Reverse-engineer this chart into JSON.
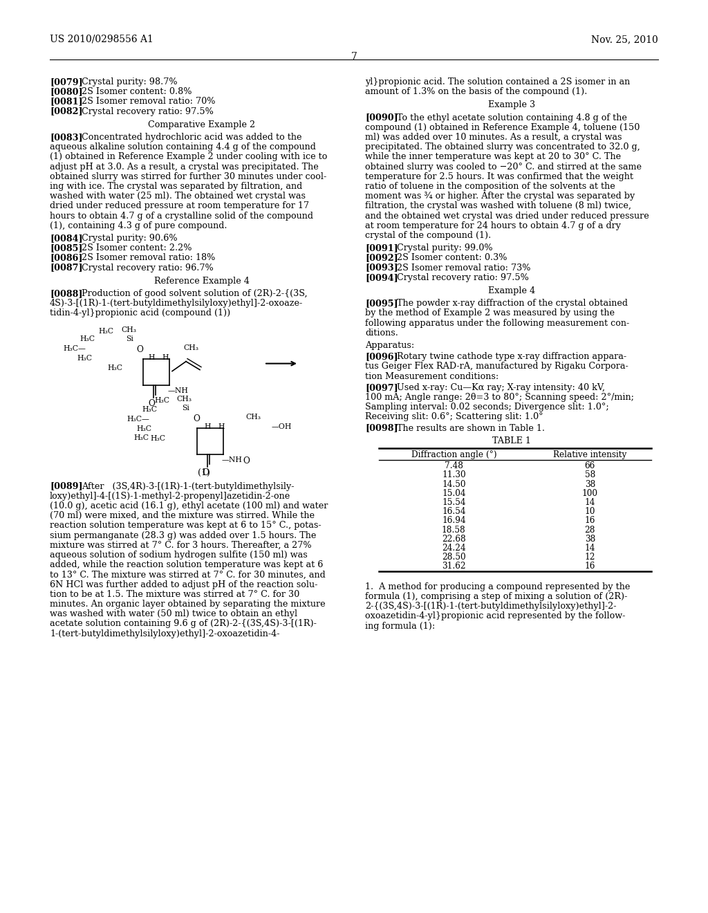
{
  "background_color": "#ffffff",
  "page_number": "7",
  "header_left": "US 2010/0298556 A1",
  "header_right": "Nov. 25, 2010",
  "table1": {
    "header": [
      "Diffraction angle (°)",
      "Relative intensity"
    ],
    "rows": [
      [
        "7.48",
        "66"
      ],
      [
        "11.30",
        "58"
      ],
      [
        "14.50",
        "38"
      ],
      [
        "15.04",
        "100"
      ],
      [
        "15.54",
        "14"
      ],
      [
        "16.54",
        "10"
      ],
      [
        "16.94",
        "16"
      ],
      [
        "18.58",
        "28"
      ],
      [
        "22.68",
        "38"
      ],
      [
        "24.24",
        "14"
      ],
      [
        "28.50",
        "12"
      ],
      [
        "31.62",
        "16"
      ]
    ]
  },
  "left_lines_0079_0082": [
    [
      "[0079]",
      "Crystal purity: 98.7%"
    ],
    [
      "[0080]",
      "2S Isomer content: 0.8%"
    ],
    [
      "[0081]",
      "2S Isomer removal ratio: 70%"
    ],
    [
      "[0082]",
      "Crystal recovery ratio: 97.5%"
    ]
  ],
  "left_lines_0084_0087": [
    [
      "[0084]",
      "Crystal purity: 90.6%"
    ],
    [
      "[0085]",
      "2S Isomer content: 2.2%"
    ],
    [
      "[0086]",
      "2S Isomer removal ratio: 18%"
    ],
    [
      "[0087]",
      "Crystal recovery ratio: 96.7%"
    ]
  ],
  "right_lines_0091_0094": [
    [
      "[0091]",
      "Crystal purity: 99.0%"
    ],
    [
      "[0092]",
      "2S Isomer content: 0.3%"
    ],
    [
      "[0093]",
      "2S Isomer removal ratio: 73%"
    ],
    [
      "[0094]",
      "Crystal recovery ratio: 97.5%"
    ]
  ],
  "lines_0083": [
    "Concentrated hydrochloric acid was added to the",
    "aqueous alkaline solution containing 4.4 g of the compound",
    "(1) obtained in Reference Example 2 under cooling with ice to",
    "adjust pH at 3.0. As a result, a crystal was precipitated. The",
    "obtained slurry was stirred for further 30 minutes under cool-",
    "ing with ice. The crystal was separated by filtration, and",
    "washed with water (25 ml). The obtained wet crystal was",
    "dried under reduced pressure at room temperature for 17",
    "hours to obtain 4.7 g of a crystalline solid of the compound",
    "(1), containing 4.3 g of pure compound."
  ],
  "lines_0088": [
    "Production of good solvent solution of (2R)-2-{(3S,",
    "4S)-3-[(1R)-1-(tert-butyldimethylsilyloxy)ethyl]-2-oxoaze-",
    "tidin-4-yl}propionic acid (compound (1))"
  ],
  "lines_0089": [
    "After   (3S,4R)-3-[(1R)-1-(tert-butyldimethylsily-",
    "loxy)ethyl]-4-[(1S)-1-methyl-2-propenyl]azetidin-2-one",
    "(10.0 g), acetic acid (16.1 g), ethyl acetate (100 ml) and water",
    "(70 ml) were mixed, and the mixture was stirred. While the",
    "reaction solution temperature was kept at 6 to 15° C., potas-",
    "sium permanganate (28.3 g) was added over 1.5 hours. The",
    "mixture was stirred at 7° C. for 3 hours. Thereafter, a 27%",
    "aqueous solution of sodium hydrogen sulfite (150 ml) was",
    "added, while the reaction solution temperature was kept at 6",
    "to 13° C. The mixture was stirred at 7° C. for 30 minutes, and",
    "6N HCl was further added to adjust pH of the reaction solu-",
    "tion to be at 1.5. The mixture was stirred at 7° C. for 30",
    "minutes. An organic layer obtained by separating the mixture",
    "was washed with water (50 ml) twice to obtain an ethyl",
    "acetate solution containing 9.6 g of (2R)-2-{(3S,4S)-3-[(1R)-",
    "1-(tert-butyldimethylsilyloxy)ethyl]-2-oxoazetidin-4-"
  ],
  "lines_cont": [
    "yl}propionic acid. The solution contained a 2S isomer in an",
    "amount of 1.3% on the basis of the compound (1)."
  ],
  "lines_0090": [
    "To the ethyl acetate solution containing 4.8 g of the",
    "compound (1) obtained in Reference Example 4, toluene (150",
    "ml) was added over 10 minutes. As a result, a crystal was",
    "precipitated. The obtained slurry was concentrated to 32.0 g,",
    "while the inner temperature was kept at 20 to 30° C. The",
    "obtained slurry was cooled to −20° C. and stirred at the same",
    "temperature for 2.5 hours. It was confirmed that the weight",
    "ratio of toluene in the composition of the solvents at the",
    "moment was ¾ or higher. After the crystal was separated by",
    "filtration, the crystal was washed with toluene (8 ml) twice,",
    "and the obtained wet crystal was dried under reduced pressure",
    "at room temperature for 24 hours to obtain 4.7 g of a dry",
    "crystal of the compound (1)."
  ],
  "lines_0095": [
    "The powder x-ray diffraction of the crystal obtained",
    "by the method of Example 2 was measured by using the",
    "following apparatus under the following measurement con-",
    "ditions."
  ],
  "lines_0096": [
    "Rotary twine cathode type x-ray diffraction appara-",
    "tus Geiger Flex RAD-rA, manufactured by Rigaku Corpora-",
    "tion Measurement conditions:"
  ],
  "lines_0097": [
    "Used x-ray: Cu—Kα ray; X-ray intensity: 40 kV,",
    "100 mA; Angle range: 2θ=3 to 80°; Scanning speed: 2°/min;",
    "Sampling interval: 0.02 seconds; Divergence slit: 1.0°;",
    "Receiving slit: 0.6°; Scattering slit: 1.0°"
  ],
  "claim_lines": [
    "1.  A method for producing a compound represented by the",
    "formula (1), comprising a step of mixing a solution of (2R)-",
    "2-{(3S,4S)-3-[(1R)-1-(tert-butyldimethylsilyloxy)ethyl]-2-",
    "oxoazetidin-4-yl}propionic acid represented by the follow-",
    "ing formula (1):"
  ]
}
